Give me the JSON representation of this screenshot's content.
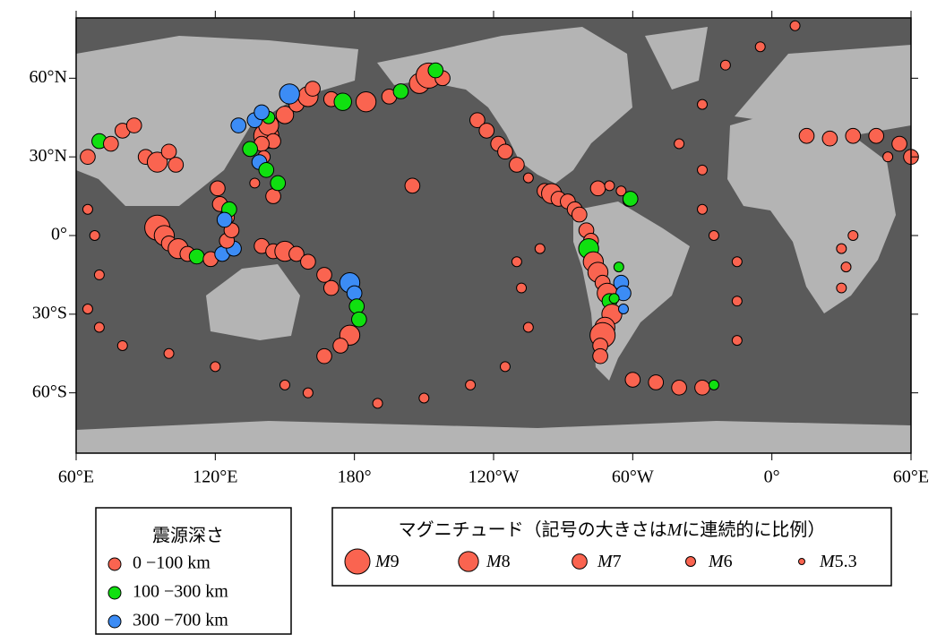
{
  "chart_data": {
    "type": "map",
    "xlim": [
      60,
      420
    ],
    "ylim": [
      -83,
      83
    ],
    "xticks": [
      {
        "value": 60,
        "label": "60°E"
      },
      {
        "value": 120,
        "label": "120°E"
      },
      {
        "value": 180,
        "label": "180°"
      },
      {
        "value": 240,
        "label": "120°W"
      },
      {
        "value": 300,
        "label": "60°W"
      },
      {
        "value": 360,
        "label": "0°"
      },
      {
        "value": 420,
        "label": "60°E"
      }
    ],
    "yticks": [
      {
        "value": -60,
        "label": "60°S"
      },
      {
        "value": -30,
        "label": "30°S"
      },
      {
        "value": 0,
        "label": "0°"
      },
      {
        "value": 30,
        "label": "30°N"
      },
      {
        "value": 60,
        "label": "60°N"
      }
    ],
    "depth_legend": {
      "title": "震源深さ",
      "classes": [
        {
          "label": "0 −100 km",
          "color": "#fa6450"
        },
        {
          "label": "100 −300 km",
          "color": "#10e010"
        },
        {
          "label": "300 −700 km",
          "color": "#3c8cf5"
        }
      ]
    },
    "size_legend": {
      "title_pre": "マグニチュード（記号の大きさは",
      "symbol": "M",
      "title_post": "に連続的に比例）",
      "magnitudes": [
        9,
        8,
        7,
        6,
        5.3
      ]
    },
    "quakes": [
      [
        142,
        38,
        9,
        0
      ],
      [
        143,
        42,
        8,
        0
      ],
      [
        150,
        46,
        7.5,
        0
      ],
      [
        155,
        50,
        7,
        0
      ],
      [
        160,
        53,
        8,
        0
      ],
      [
        162,
        56,
        7,
        0
      ],
      [
        145,
        36,
        7,
        0
      ],
      [
        140,
        35,
        7,
        0
      ],
      [
        141,
        30,
        6.5,
        0
      ],
      [
        139,
        28,
        7,
        2
      ],
      [
        135,
        33,
        7,
        1
      ],
      [
        143,
        45,
        6.5,
        1
      ],
      [
        170,
        52,
        7,
        0
      ],
      [
        175,
        51,
        7.5,
        1
      ],
      [
        185,
        51,
        8,
        0
      ],
      [
        195,
        53,
        7,
        0
      ],
      [
        200,
        55,
        7,
        1
      ],
      [
        208,
        58,
        8,
        0
      ],
      [
        212,
        61,
        9,
        0
      ],
      [
        218,
        60,
        7,
        0
      ],
      [
        215,
        63,
        7,
        1
      ],
      [
        152,
        54,
        8,
        2
      ],
      [
        137,
        44,
        7,
        2
      ],
      [
        130,
        42,
        7,
        2
      ],
      [
        140,
        47,
        7,
        2
      ],
      [
        233,
        44,
        7,
        0
      ],
      [
        237,
        40,
        7,
        0
      ],
      [
        242,
        35,
        7,
        0
      ],
      [
        245,
        32,
        7,
        0
      ],
      [
        250,
        27,
        7,
        0
      ],
      [
        255,
        22,
        6,
        0
      ],
      [
        262,
        17,
        7,
        0
      ],
      [
        265,
        16,
        8,
        0
      ],
      [
        268,
        14,
        7,
        0
      ],
      [
        272,
        13,
        7,
        0
      ],
      [
        275,
        10,
        7,
        0
      ],
      [
        277,
        8,
        7,
        0
      ],
      [
        285,
        18,
        7,
        0
      ],
      [
        290,
        19,
        6,
        0
      ],
      [
        295,
        17,
        6,
        0
      ],
      [
        298,
        13,
        6,
        0
      ],
      [
        299,
        14,
        7,
        1
      ],
      [
        280,
        2,
        7,
        0
      ],
      [
        282,
        -2,
        7,
        0
      ],
      [
        281,
        -5,
        8,
        1
      ],
      [
        283,
        -10,
        8,
        0
      ],
      [
        285,
        -14,
        8,
        0
      ],
      [
        287,
        -18,
        7,
        0
      ],
      [
        289,
        -22,
        8,
        0
      ],
      [
        290,
        -25,
        7,
        1
      ],
      [
        291,
        -30,
        8,
        0
      ],
      [
        288,
        -35,
        8,
        0
      ],
      [
        287,
        -38,
        9,
        0
      ],
      [
        286,
        -42,
        7,
        0
      ],
      [
        286,
        -46,
        7,
        0
      ],
      [
        295,
        -18,
        7,
        2
      ],
      [
        296,
        -22,
        7,
        2
      ],
      [
        296,
        -28,
        6,
        2
      ],
      [
        294,
        -12,
        6,
        1
      ],
      [
        292,
        -24,
        6,
        1
      ],
      [
        300,
        -55,
        7,
        0
      ],
      [
        310,
        -56,
        7,
        0
      ],
      [
        320,
        -58,
        7,
        0
      ],
      [
        330,
        -58,
        7,
        0
      ],
      [
        335,
        -57,
        6,
        1
      ],
      [
        330,
        10,
        6,
        0
      ],
      [
        335,
        0,
        6,
        0
      ],
      [
        345,
        -10,
        6,
        0
      ],
      [
        345,
        -25,
        6,
        0
      ],
      [
        345,
        -40,
        6,
        0
      ],
      [
        330,
        25,
        6,
        0
      ],
      [
        320,
        35,
        6,
        0
      ],
      [
        330,
        50,
        6,
        0
      ],
      [
        340,
        65,
        6,
        0
      ],
      [
        355,
        72,
        6,
        0
      ],
      [
        370,
        80,
        6,
        0
      ],
      [
        375,
        38,
        7,
        0
      ],
      [
        385,
        37,
        7,
        0
      ],
      [
        395,
        38,
        7,
        0
      ],
      [
        405,
        38,
        7,
        0
      ],
      [
        415,
        35,
        7,
        0
      ],
      [
        410,
        30,
        6,
        0
      ],
      [
        420,
        30,
        7,
        0
      ],
      [
        65,
        30,
        7,
        0
      ],
      [
        70,
        36,
        7,
        1
      ],
      [
        75,
        35,
        7,
        0
      ],
      [
        80,
        40,
        7,
        0
      ],
      [
        85,
        42,
        7,
        0
      ],
      [
        90,
        30,
        7,
        0
      ],
      [
        95,
        28,
        8,
        0
      ],
      [
        100,
        32,
        7,
        0
      ],
      [
        103,
        27,
        7,
        0
      ],
      [
        95,
        3,
        9,
        0
      ],
      [
        98,
        0,
        8,
        0
      ],
      [
        100,
        -3,
        7,
        0
      ],
      [
        104,
        -5,
        8,
        0
      ],
      [
        108,
        -7,
        7,
        0
      ],
      [
        112,
        -8,
        7,
        1
      ],
      [
        118,
        -9,
        7,
        0
      ],
      [
        123,
        -7,
        7,
        2
      ],
      [
        128,
        -5,
        7,
        2
      ],
      [
        125,
        -2,
        7,
        0
      ],
      [
        127,
        2,
        7,
        0
      ],
      [
        125,
        7,
        7,
        0
      ],
      [
        122,
        12,
        7,
        0
      ],
      [
        121,
        18,
        7,
        0
      ],
      [
        126,
        10,
        7,
        1
      ],
      [
        124,
        6,
        7,
        2
      ],
      [
        140,
        -4,
        7,
        0
      ],
      [
        145,
        -6,
        7,
        0
      ],
      [
        150,
        -6,
        8,
        0
      ],
      [
        155,
        -7,
        7,
        0
      ],
      [
        160,
        -10,
        7,
        0
      ],
      [
        167,
        -15,
        7,
        0
      ],
      [
        170,
        -20,
        7,
        0
      ],
      [
        178,
        -18,
        8,
        2
      ],
      [
        180,
        -22,
        7,
        2
      ],
      [
        181,
        -27,
        7,
        1
      ],
      [
        182,
        -32,
        7,
        1
      ],
      [
        178,
        -38,
        8,
        0
      ],
      [
        174,
        -42,
        7,
        0
      ],
      [
        167,
        -46,
        7,
        0
      ],
      [
        160,
        -60,
        6,
        0
      ],
      [
        150,
        -57,
        6,
        0
      ],
      [
        120,
        -50,
        6,
        0
      ],
      [
        100,
        -45,
        6,
        0
      ],
      [
        80,
        -42,
        6,
        0
      ],
      [
        70,
        -35,
        6,
        0
      ],
      [
        65,
        -28,
        6,
        0
      ],
      [
        68,
        0,
        6,
        0
      ],
      [
        65,
        10,
        6,
        0
      ],
      [
        70,
        -15,
        6,
        0
      ],
      [
        250,
        -10,
        6,
        0
      ],
      [
        252,
        -20,
        6,
        0
      ],
      [
        255,
        -35,
        6,
        0
      ],
      [
        245,
        -50,
        6,
        0
      ],
      [
        230,
        -57,
        6,
        0
      ],
      [
        210,
        -62,
        6,
        0
      ],
      [
        190,
        -64,
        6,
        0
      ],
      [
        260,
        -5,
        6,
        0
      ],
      [
        390,
        -5,
        6,
        0
      ],
      [
        395,
        0,
        6,
        0
      ],
      [
        392,
        -12,
        6,
        0
      ],
      [
        390,
        -20,
        6,
        0
      ],
      [
        145,
        15,
        7,
        0
      ],
      [
        147,
        20,
        7,
        1
      ],
      [
        142,
        25,
        7,
        1
      ],
      [
        137,
        20,
        6,
        0
      ],
      [
        205,
        19,
        7,
        0
      ]
    ]
  }
}
